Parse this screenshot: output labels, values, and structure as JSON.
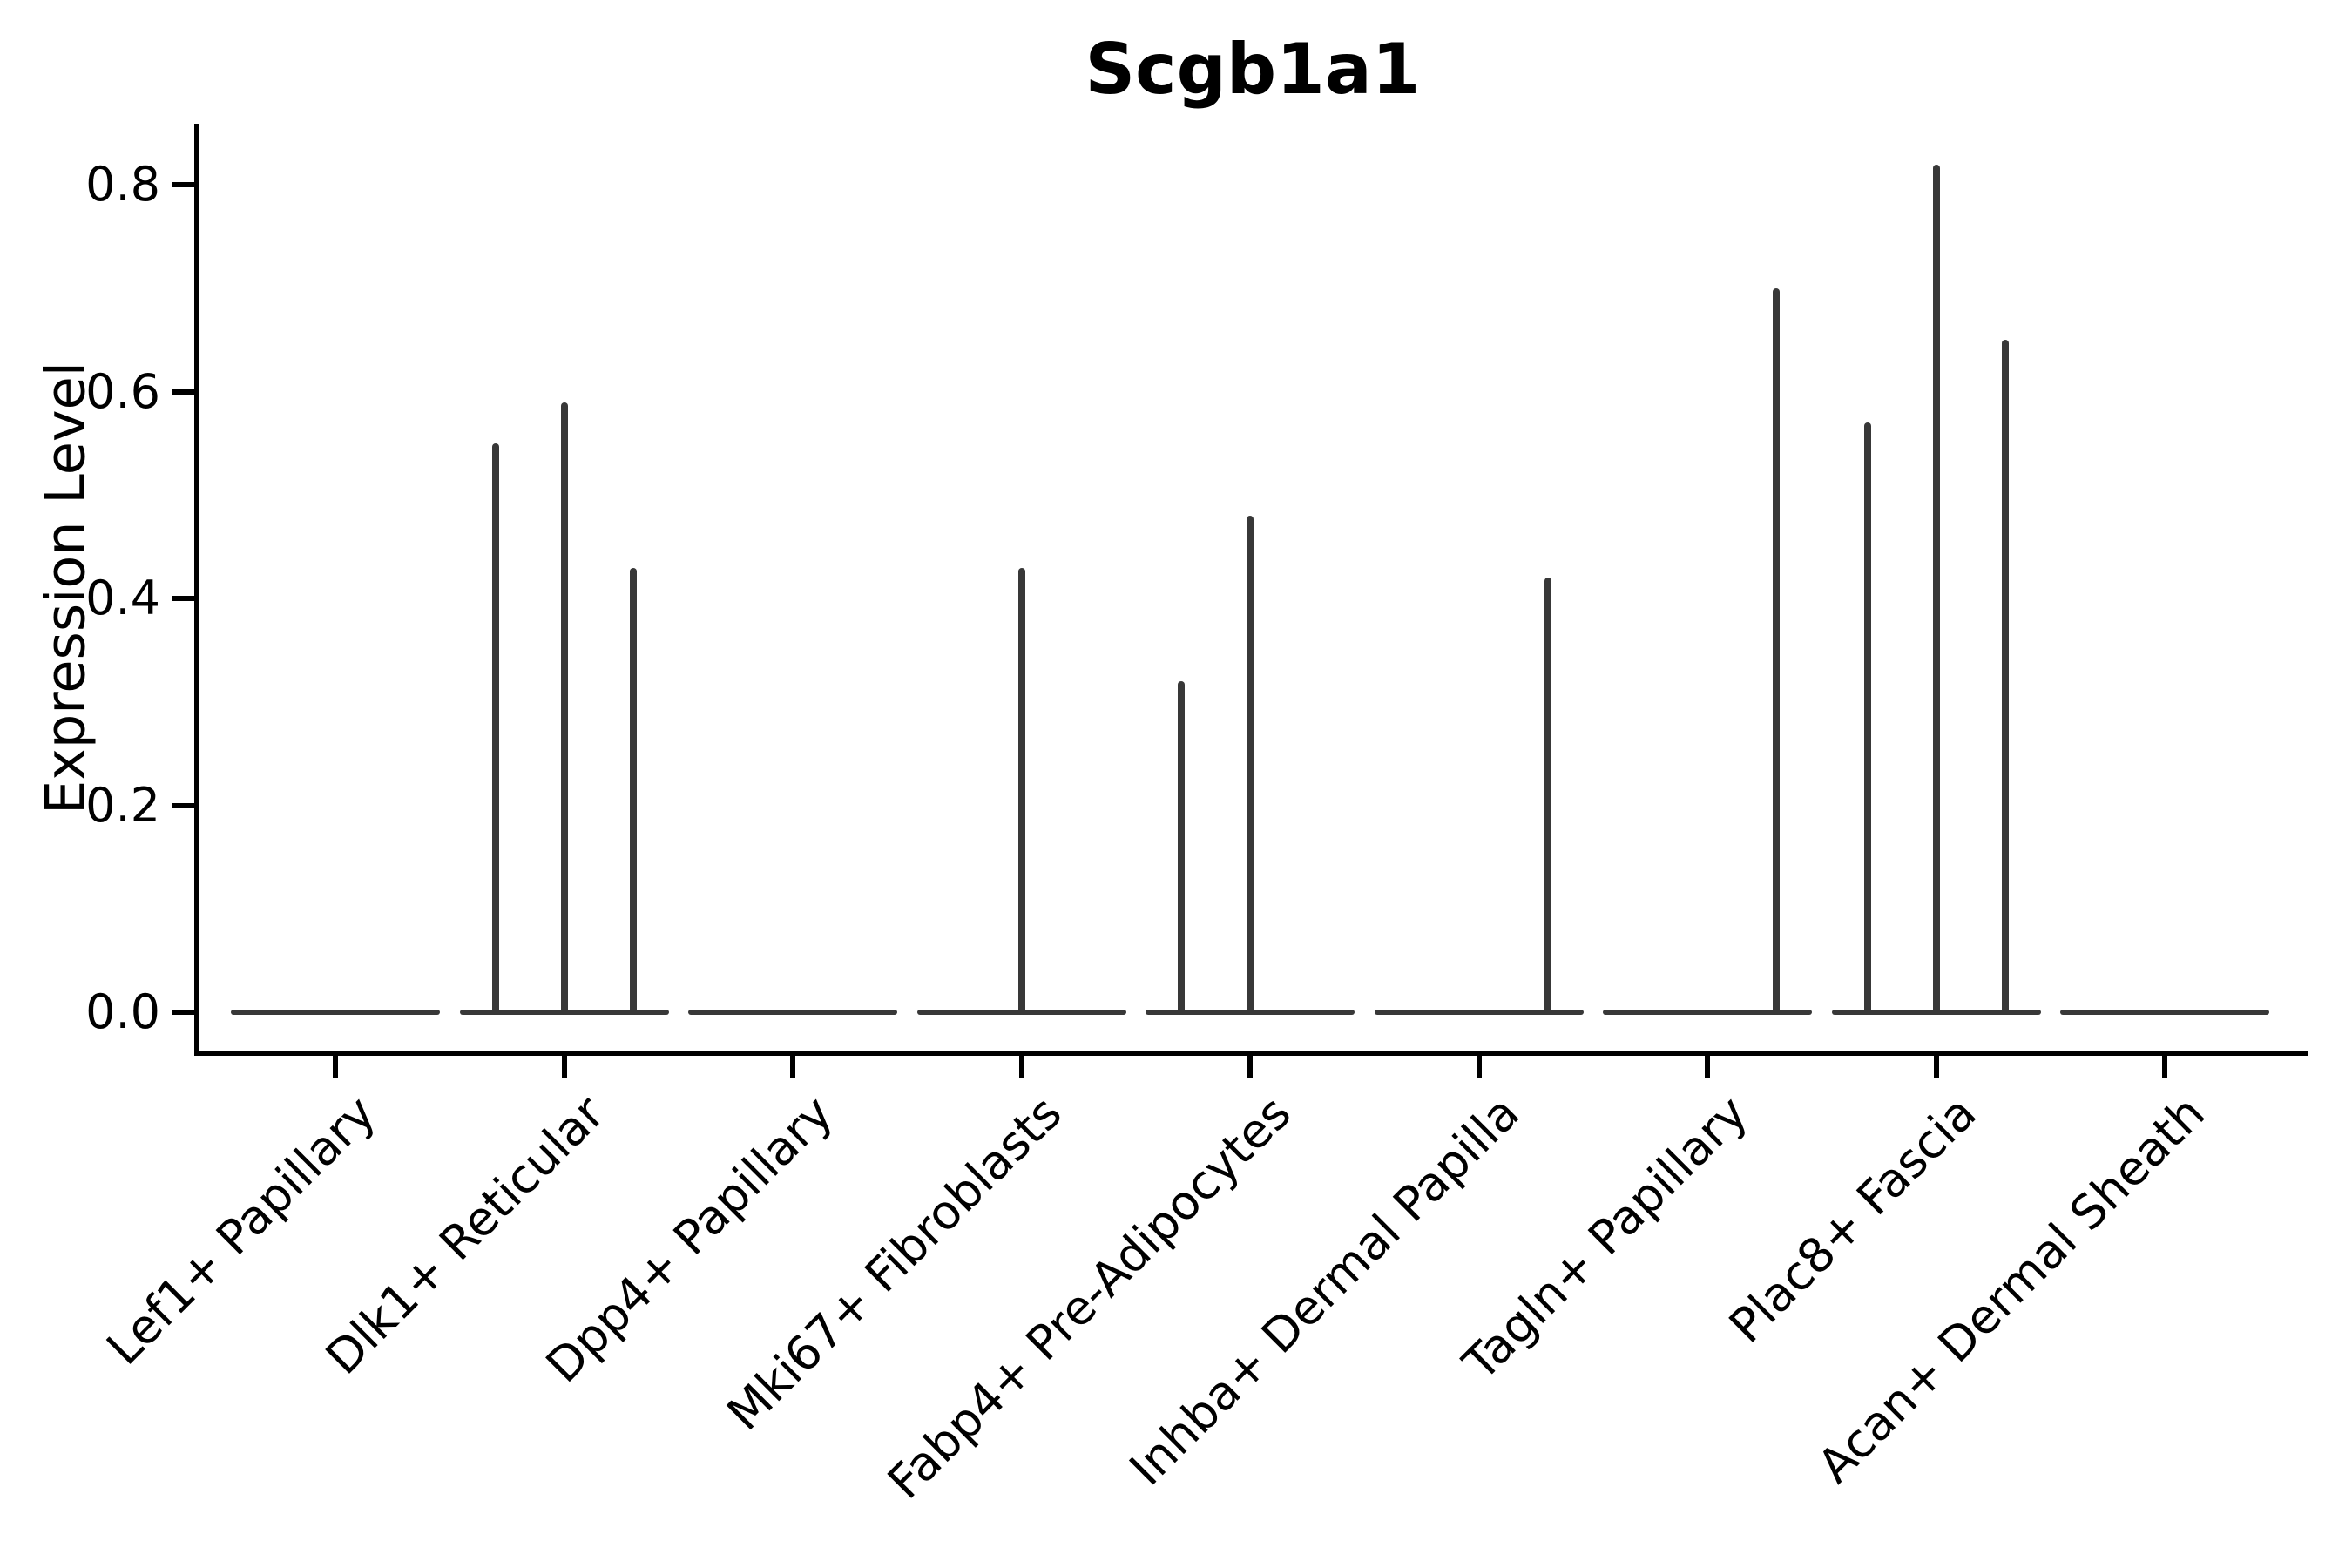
{
  "title": "Scgb1a1",
  "colors": {
    "axis": "#000000",
    "text": "#000000",
    "violin": "#383838",
    "background": "#ffffff"
  },
  "chart_data": {
    "type": "violin",
    "title": "Scgb1a1",
    "ylabel": "Expression Level",
    "xlabel": "",
    "ylim": [
      0,
      0.86
    ],
    "yticks": [
      0,
      0.2,
      0.4,
      0.6,
      0.8
    ],
    "grid": false,
    "legend": "none",
    "x_tick_rotation": 45,
    "categories": [
      "Lef1+ Papillary",
      "Dlk1+ Reticular",
      "Dpp4+ Papillary",
      "Mki67+ Fibroblasts",
      "Fabp4+ Pre-Adipocytes",
      "Inhba+ Dermal Papilla",
      "Tagln+ Papillary",
      "Plac8+ Fascia",
      "Acan+ Dermal Sheath"
    ],
    "description": "Violin plot of Scgb1a1 expression per fibroblast cluster; each cluster shows a flat baseline at 0 with thin spikes marking the few expressing cells (spike slot: -1 = left, 0 = center, 1 = right of cluster center).",
    "violins": [
      {
        "category": "Lef1+ Papillary",
        "baseline_value": 0,
        "spikes": []
      },
      {
        "category": "Dlk1+ Reticular",
        "baseline_value": 0,
        "spikes": [
          {
            "slot": -1,
            "value": 0.55
          },
          {
            "slot": 0,
            "value": 0.59
          },
          {
            "slot": 1,
            "value": 0.43
          }
        ]
      },
      {
        "category": "Dpp4+ Papillary",
        "baseline_value": 0,
        "spikes": []
      },
      {
        "category": "Mki67+ Fibroblasts",
        "baseline_value": 0,
        "spikes": [
          {
            "slot": 0,
            "value": 0.43
          }
        ]
      },
      {
        "category": "Fabp4+ Pre-Adipocytes",
        "baseline_value": 0,
        "spikes": [
          {
            "slot": -1,
            "value": 0.32
          },
          {
            "slot": 0,
            "value": 0.48
          }
        ]
      },
      {
        "category": "Inhba+ Dermal Papilla",
        "baseline_value": 0,
        "spikes": [
          {
            "slot": 1,
            "value": 0.42
          }
        ]
      },
      {
        "category": "Tagln+ Papillary",
        "baseline_value": 0,
        "spikes": [
          {
            "slot": 1,
            "value": 0.7
          }
        ]
      },
      {
        "category": "Plac8+ Fascia",
        "baseline_value": 0,
        "spikes": [
          {
            "slot": -1,
            "value": 0.57
          },
          {
            "slot": 0,
            "value": 0.82
          },
          {
            "slot": 1,
            "value": 0.65
          }
        ]
      },
      {
        "category": "Acan+ Dermal Sheath",
        "baseline_value": 0,
        "spikes": []
      }
    ]
  }
}
